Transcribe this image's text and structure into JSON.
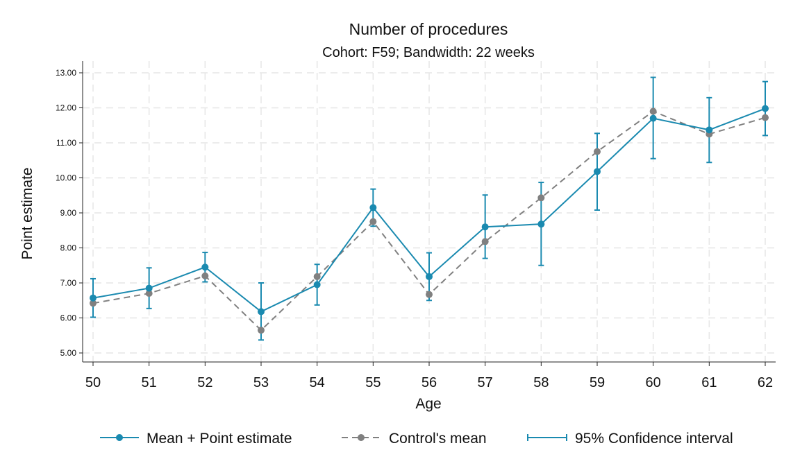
{
  "colors": {
    "estimate": "#1a8ab0",
    "control": "#808080",
    "grid": "#e6e6e6",
    "axis": "#222222"
  },
  "chart_data": {
    "type": "line",
    "title": "Number of procedures",
    "subtitle": "Cohort: F59; Bandwidth: 22 weeks",
    "xlabel": "Age",
    "ylabel": "Point estimate",
    "x": [
      50,
      51,
      52,
      53,
      54,
      55,
      56,
      57,
      58,
      59,
      60,
      61,
      62
    ],
    "xlim": [
      50,
      62
    ],
    "ylim": [
      5,
      13
    ],
    "yticks": [
      "5.00",
      "6.00",
      "7.00",
      "8.00",
      "9.00",
      "10.00",
      "11.00",
      "12.00",
      "13.00"
    ],
    "grid": true,
    "legend_position": "bottom",
    "series": [
      {
        "name": "Mean + Point estimate",
        "style": "solid-marker",
        "values": [
          6.57,
          6.85,
          7.45,
          6.18,
          6.95,
          9.15,
          7.18,
          8.6,
          8.68,
          10.18,
          11.7,
          11.37,
          11.98
        ]
      },
      {
        "name": "Control's mean",
        "style": "dashed-marker",
        "values": [
          6.42,
          6.7,
          7.2,
          5.65,
          7.18,
          8.75,
          6.67,
          8.18,
          9.43,
          10.75,
          11.9,
          11.25,
          11.72
        ]
      },
      {
        "name": "95% Confidence interval",
        "style": "errorbar",
        "lower": [
          6.02,
          6.27,
          7.03,
          5.37,
          6.37,
          8.62,
          6.5,
          7.7,
          7.5,
          9.08,
          10.55,
          10.44,
          11.21
        ],
        "upper": [
          7.12,
          7.43,
          7.87,
          7.0,
          7.53,
          9.68,
          7.86,
          9.51,
          9.87,
          11.27,
          12.87,
          12.29,
          12.75
        ]
      }
    ]
  }
}
